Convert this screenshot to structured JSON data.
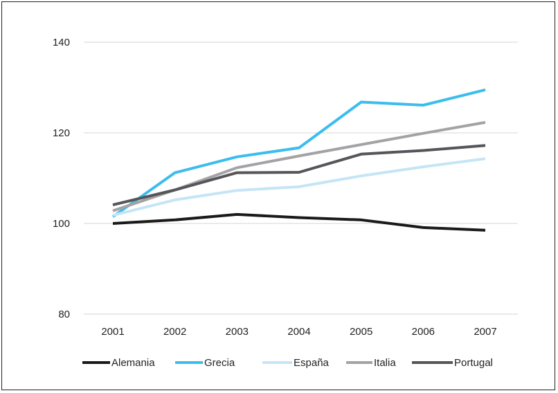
{
  "chart_data": {
    "type": "line",
    "title": "",
    "xlabel": "",
    "ylabel": "",
    "x": [
      "2001",
      "2002",
      "2003",
      "2004",
      "2005",
      "2006",
      "2007"
    ],
    "ylim": [
      80,
      140
    ],
    "yticks": [
      "80",
      "100",
      "120",
      "140"
    ],
    "grid": true,
    "legend": "bottom",
    "series": [
      {
        "name": "Alemania",
        "color": "#1a1a1a",
        "values": [
          100.0,
          100.8,
          102.0,
          101.3,
          100.8,
          99.1,
          98.5
        ]
      },
      {
        "name": "Grecia",
        "color": "#3bbdee",
        "values": [
          101.5,
          111.2,
          114.7,
          116.7,
          126.8,
          126.1,
          129.5
        ]
      },
      {
        "name": "España",
        "color": "#c5e5f6",
        "values": [
          101.8,
          105.2,
          107.3,
          108.1,
          110.5,
          112.5,
          114.3
        ]
      },
      {
        "name": "Italia",
        "color": "#a3a3a6",
        "values": [
          102.8,
          107.4,
          112.3,
          114.9,
          117.4,
          119.9,
          122.3
        ]
      },
      {
        "name": "Portugal",
        "color": "#55555a",
        "values": [
          104.1,
          107.4,
          111.2,
          111.3,
          115.3,
          116.1,
          117.2
        ]
      }
    ]
  }
}
